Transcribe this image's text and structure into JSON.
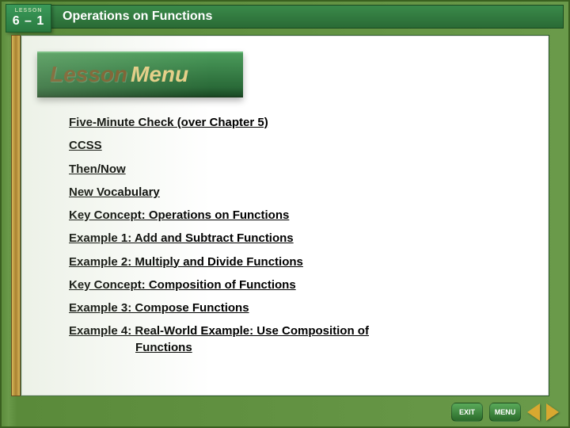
{
  "header": {
    "lesson_label": "LESSON",
    "lesson_number": "6 – 1",
    "title": "Operations on Functions"
  },
  "banner": {
    "word1": "Lesson",
    "word2": "Menu"
  },
  "menu": {
    "items": [
      "Five-Minute Check (over Chapter 5)",
      "CCSS",
      "Then/Now",
      "New Vocabulary",
      "Key Concept:  Operations on Functions",
      "Example 1:  Add and Subtract Functions",
      "Example 2:  Multiply and Divide Functions",
      "Key Concept:  Composition of Functions",
      "Example 3:  Compose Functions"
    ],
    "wrapped_item_line1": "Example 4:  Real-World Example: Use Composition of",
    "wrapped_item_line2": "Functions"
  },
  "nav": {
    "exit": "EXIT",
    "menu": "MENU"
  },
  "colors": {
    "bg_green_dark": "#2a6a35",
    "bg_green_light": "#5a9a4a",
    "gold": "#d8a830",
    "banner_text1": "#7a5a2a",
    "banner_text2": "#e8d088"
  }
}
